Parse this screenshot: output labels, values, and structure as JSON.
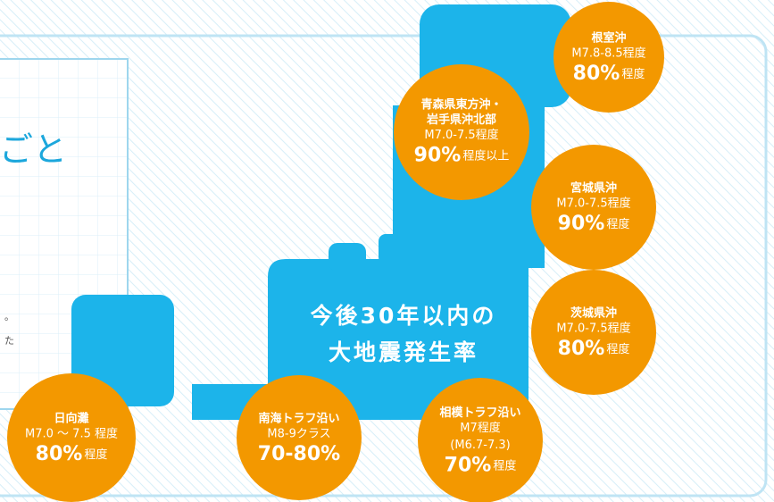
{
  "card": {
    "heading": "ごと",
    "fragments": [
      "。",
      "た"
    ]
  },
  "center_title": [
    "今後30年以内の",
    "大地震発生率"
  ],
  "regions": [
    {
      "name": [
        "根室沖"
      ],
      "magnitude": [
        "M7.8-8.5程度"
      ],
      "probability": "80%",
      "suffix": "程度"
    },
    {
      "name": [
        "青森県東方沖・",
        "岩手県沖北部"
      ],
      "magnitude": [
        "M7.0-7.5程度"
      ],
      "probability": "90%",
      "suffix": "程度以上"
    },
    {
      "name": [
        "宮城県沖"
      ],
      "magnitude": [
        "M7.0-7.5程度"
      ],
      "probability": "90%",
      "suffix": "程度"
    },
    {
      "name": [
        "茨城県沖"
      ],
      "magnitude": [
        "M7.0-7.5程度"
      ],
      "probability": "80%",
      "suffix": "程度"
    },
    {
      "name": [
        "相模トラフ沿い"
      ],
      "magnitude": [
        "M7程度",
        "(M6.7-7.3)"
      ],
      "probability": "70%",
      "suffix": "程度"
    },
    {
      "name": [
        "南海トラフ沿い"
      ],
      "magnitude": [
        "M8-9クラス"
      ],
      "probability": "70-80%",
      "suffix": ""
    },
    {
      "name": [
        "日向灘"
      ],
      "magnitude": [
        "M7.0 ～ 7.5 程度"
      ],
      "probability": "80%",
      "suffix": "程度"
    }
  ]
}
